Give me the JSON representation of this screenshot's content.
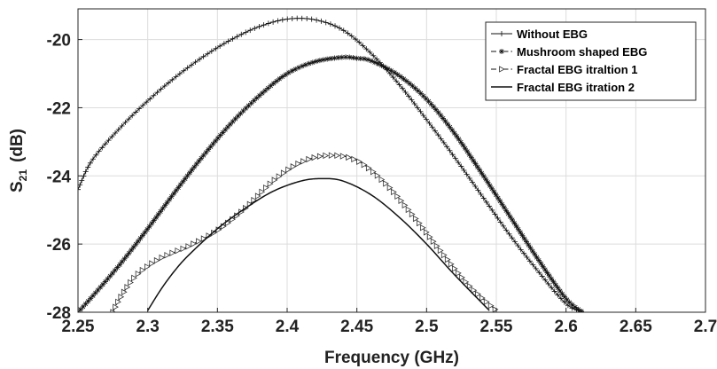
{
  "chart_data": {
    "type": "line",
    "title": "",
    "xlabel": "Frequency (GHz)",
    "ylabel_main": "S",
    "ylabel_sub": "21",
    "ylabel_unit": "(dB)",
    "xlim": [
      2.25,
      2.7
    ],
    "ylim": [
      -28,
      -19.1
    ],
    "grid": true,
    "legend_position": "top-right",
    "x_ticks": [
      2.25,
      2.3,
      2.35,
      2.4,
      2.45,
      2.5,
      2.55,
      2.6,
      2.65,
      2.7
    ],
    "x_tick_labels": [
      "2.25",
      "2.3",
      "2.35",
      "2.4",
      "2.45",
      "2.5",
      "2.55",
      "2.6",
      "2.65",
      "2.7"
    ],
    "y_ticks": [
      -28,
      -26,
      -24,
      -22,
      -20
    ],
    "y_tick_labels": [
      "-28",
      "-26",
      "-24",
      "-22",
      "-20"
    ],
    "series": [
      {
        "name": "Without EBG",
        "marker": "plus",
        "line_style": "solid",
        "x": [
          2.25,
          2.26,
          2.28,
          2.3,
          2.32,
          2.34,
          2.36,
          2.38,
          2.4,
          2.42,
          2.44,
          2.46,
          2.48,
          2.5,
          2.52,
          2.54,
          2.56,
          2.58,
          2.6,
          2.612
        ],
        "y": [
          -24.4,
          -23.55,
          -22.6,
          -21.8,
          -21.1,
          -20.5,
          -20.0,
          -19.62,
          -19.4,
          -19.42,
          -19.72,
          -20.4,
          -21.3,
          -22.35,
          -23.45,
          -24.6,
          -25.75,
          -26.8,
          -27.75,
          -28.0
        ]
      },
      {
        "name": "Mushroom shaped EBG",
        "marker": "asterisk",
        "line_style": "dashdot",
        "x": [
          2.25,
          2.26,
          2.28,
          2.3,
          2.32,
          2.34,
          2.36,
          2.38,
          2.4,
          2.42,
          2.44,
          2.45,
          2.46,
          2.48,
          2.5,
          2.52,
          2.54,
          2.56,
          2.58,
          2.6,
          2.612
        ],
        "y": [
          -28.0,
          -27.55,
          -26.6,
          -25.55,
          -24.45,
          -23.4,
          -22.45,
          -21.65,
          -21.0,
          -20.65,
          -20.52,
          -20.55,
          -20.62,
          -21.05,
          -21.75,
          -22.75,
          -23.95,
          -25.2,
          -26.45,
          -27.6,
          -28.0
        ]
      },
      {
        "name": "Fractal EBG itraltion 1",
        "marker": "triangle-right",
        "line_style": "dashdot",
        "x": [
          2.275,
          2.28,
          2.29,
          2.3,
          2.31,
          2.32,
          2.33,
          2.35,
          2.37,
          2.39,
          2.41,
          2.43,
          2.45,
          2.47,
          2.49,
          2.51,
          2.53,
          2.55
        ],
        "y": [
          -28.0,
          -27.6,
          -27.0,
          -26.65,
          -26.4,
          -26.22,
          -26.05,
          -25.6,
          -24.95,
          -24.15,
          -23.6,
          -23.4,
          -23.55,
          -24.2,
          -25.15,
          -26.2,
          -27.2,
          -27.95
        ]
      },
      {
        "name": "Fractal EBG itration 2",
        "marker": "none",
        "line_style": "solid",
        "x": [
          2.3,
          2.31,
          2.32,
          2.33,
          2.35,
          2.37,
          2.39,
          2.41,
          2.425,
          2.44,
          2.46,
          2.48,
          2.5,
          2.52,
          2.545
        ],
        "y": [
          -27.95,
          -27.3,
          -26.75,
          -26.3,
          -25.55,
          -24.95,
          -24.45,
          -24.15,
          -24.08,
          -24.15,
          -24.55,
          -25.2,
          -26.0,
          -26.9,
          -27.95
        ]
      }
    ]
  }
}
